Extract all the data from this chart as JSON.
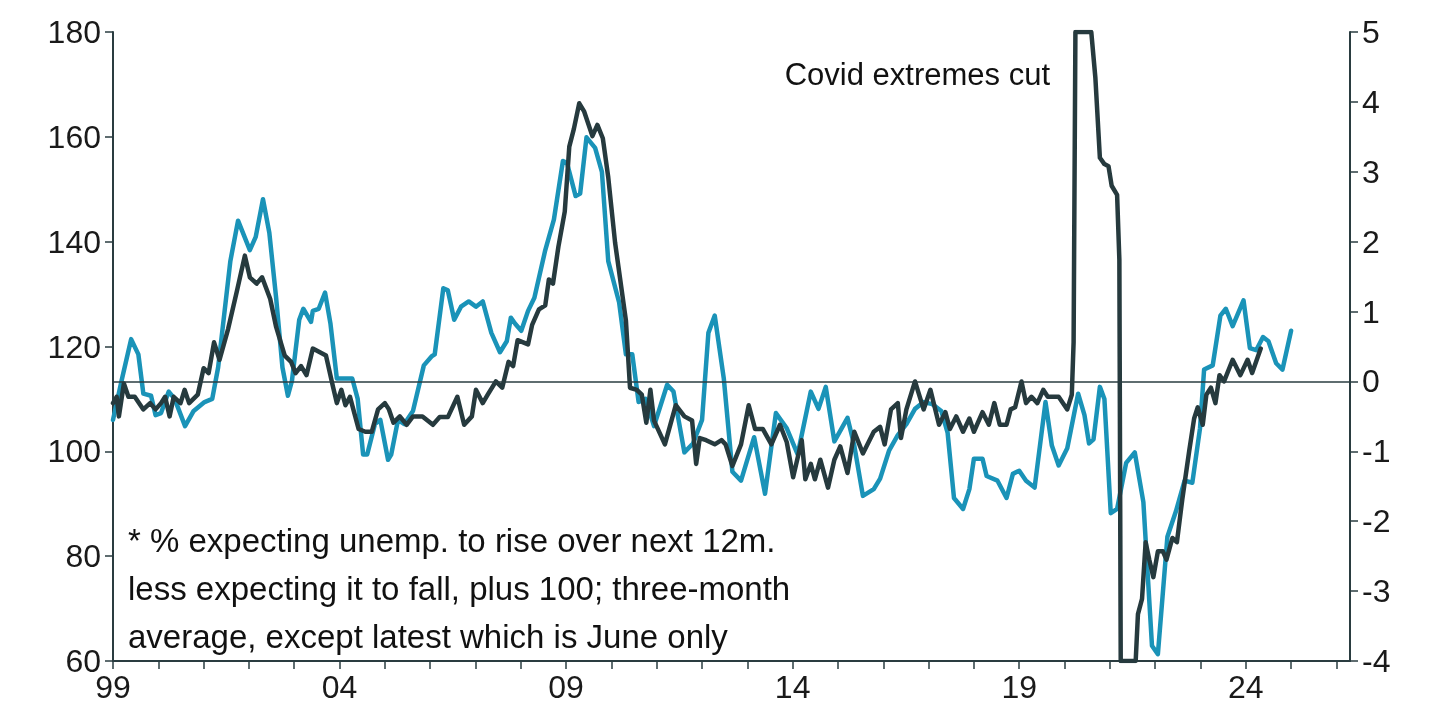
{
  "chart_data": {
    "type": "line",
    "marker": "none",
    "line_style": "solid",
    "xlim": [
      1999,
      2026.3
    ],
    "xticks": [
      {
        "value": 1999,
        "label": "99"
      },
      {
        "value": 2000,
        "label": null
      },
      {
        "value": 2001,
        "label": null
      },
      {
        "value": 2002,
        "label": null
      },
      {
        "value": 2003,
        "label": null
      },
      {
        "value": 2004,
        "label": "04"
      },
      {
        "value": 2005,
        "label": null
      },
      {
        "value": 2006,
        "label": null
      },
      {
        "value": 2007,
        "label": null
      },
      {
        "value": 2008,
        "label": null
      },
      {
        "value": 2009,
        "label": "09"
      },
      {
        "value": 2010,
        "label": null
      },
      {
        "value": 2011,
        "label": null
      },
      {
        "value": 2012,
        "label": null
      },
      {
        "value": 2013,
        "label": null
      },
      {
        "value": 2014,
        "label": "14"
      },
      {
        "value": 2015,
        "label": null
      },
      {
        "value": 2016,
        "label": null
      },
      {
        "value": 2017,
        "label": null
      },
      {
        "value": 2018,
        "label": null
      },
      {
        "value": 2019,
        "label": "19"
      },
      {
        "value": 2020,
        "label": null
      },
      {
        "value": 2021,
        "label": null
      },
      {
        "value": 2022,
        "label": null
      },
      {
        "value": 2023,
        "label": null
      },
      {
        "value": 2024,
        "label": "24"
      },
      {
        "value": 2025,
        "label": null
      },
      {
        "value": 2026,
        "label": null
      }
    ],
    "ylim": [
      60,
      180
    ],
    "yticks": [
      60,
      80,
      100,
      120,
      140,
      160,
      180
    ],
    "y2lim": [
      -4,
      5
    ],
    "y2ticks": [
      -4,
      -3,
      -2,
      -1,
      0,
      1,
      2,
      3,
      4,
      5
    ],
    "ref_lines": [
      {
        "axis": "y2",
        "value": 0,
        "color": "#2a3c40"
      }
    ],
    "annotations": [
      "Covid extremes cut",
      "* % expecting unemp. to rise over next 12m.\nless expecting it to fall, plus 100; three-month\naverage, except latest which is June only"
    ],
    "series": [
      {
        "color": "#1a93b8",
        "x": [
          1999.0,
          1999.19,
          1999.4,
          1999.56,
          1999.67,
          1999.84,
          1999.94,
          2000.06,
          2000.23,
          2000.36,
          2000.59,
          2000.78,
          2001.02,
          2001.19,
          2001.32,
          2001.59,
          2001.76,
          2002.02,
          2002.15,
          2002.31,
          2002.45,
          2002.6,
          2002.74,
          2002.86,
          2002.95,
          2003.11,
          2003.2,
          2003.37,
          2003.41,
          2003.54,
          2003.68,
          2003.8,
          2003.94,
          2004.28,
          2004.4,
          2004.52,
          2004.61,
          2004.78,
          2004.9,
          2005.07,
          2005.14,
          2005.29,
          2005.43,
          2005.62,
          2005.86,
          2006.03,
          2006.1,
          2006.29,
          2006.39,
          2006.53,
          2006.68,
          2006.85,
          2007.01,
          2007.16,
          2007.35,
          2007.54,
          2007.69,
          2007.78,
          2007.88,
          2008.01,
          2008.16,
          2008.3,
          2008.54,
          2008.73,
          2008.93,
          2009.02,
          2009.21,
          2009.31,
          2009.45,
          2009.64,
          2009.79,
          2009.93,
          2010.17,
          2010.32,
          2010.46,
          2010.6,
          2010.75,
          2010.94,
          2011.23,
          2011.37,
          2011.61,
          2011.8,
          2012.0,
          2012.14,
          2012.28,
          2012.48,
          2012.67,
          2012.86,
          2013.15,
          2013.39,
          2013.63,
          2013.87,
          2014.11,
          2014.4,
          2014.57,
          2014.73,
          2014.92,
          2015.21,
          2015.36,
          2015.55,
          2015.79,
          2015.93,
          2016.13,
          2016.32,
          2016.51,
          2016.7,
          2016.89,
          2017.08,
          2017.28,
          2017.42,
          2017.56,
          2017.76,
          2017.9,
          2018.0,
          2018.19,
          2018.28,
          2018.52,
          2018.72,
          2018.86,
          2019.0,
          2019.15,
          2019.34,
          2019.58,
          2019.72,
          2019.87,
          2020.06,
          2020.3,
          2020.44,
          2020.54,
          2020.64,
          2020.78,
          2020.88,
          2021.02,
          2021.16,
          2021.36,
          2021.55,
          2021.74,
          2021.93,
          2022.06,
          2022.27,
          2022.46,
          2022.65,
          2022.82,
          2022.99,
          2023.08,
          2023.27,
          2023.44,
          2023.56,
          2023.71,
          2023.95,
          2024.09,
          2024.23,
          2024.38,
          2024.5,
          2024.67,
          2024.81,
          2025.0
        ],
        "values": [
          106,
          113.5,
          121.4,
          118.5,
          111,
          110.6,
          106.9,
          107.3,
          111.4,
          110,
          104.8,
          107.7,
          109.4,
          110,
          116,
          136.3,
          144,
          138.4,
          140.9,
          148.1,
          141.7,
          129.3,
          116,
          110.6,
          113.5,
          125.1,
          127.2,
          124.7,
          126.8,
          127.2,
          130.3,
          124.3,
          113.9,
          113.9,
          110,
          99.4,
          99.4,
          105.2,
          106,
          98.4,
          99.4,
          106,
          105.2,
          107.7,
          116.4,
          118.1,
          118.5,
          131.1,
          130.7,
          125.1,
          127.6,
          128.6,
          127.6,
          128.6,
          122.6,
          118.9,
          121,
          125.5,
          124.3,
          123,
          126.8,
          129.3,
          138.4,
          144.2,
          155.4,
          155,
          148.7,
          149.2,
          159.9,
          157.9,
          153.3,
          136.3,
          128.4,
          118.5,
          118.5,
          109.4,
          110,
          104.8,
          112.7,
          111.4,
          99.8,
          101.5,
          106,
          122.6,
          125.9,
          113.9,
          96.1,
          94.4,
          102.7,
          91.9,
          107.3,
          104.4,
          99.4,
          111.4,
          108.1,
          112.3,
          101.9,
          106.4,
          101.1,
          91.5,
          92.8,
          94.8,
          100.2,
          103.1,
          105.2,
          108.1,
          109.4,
          109,
          107.7,
          103.5,
          91.1,
          89,
          92.8,
          98.6,
          98.6,
          95.3,
          94.4,
          91.1,
          95.7,
          96.3,
          94.4,
          93.1,
          109.4,
          101.1,
          97.3,
          100.6,
          111,
          106.9,
          101.5,
          102.3,
          112.3,
          110,
          88.2,
          89,
          97.8,
          99.8,
          90.3,
          62.9,
          61.3,
          83.7,
          88.6,
          94.4,
          94,
          104.4,
          115.6,
          116.4,
          125.9,
          127.2,
          123.9,
          128.8,
          119.7,
          119.3,
          121.8,
          121,
          116.8,
          115.6,
          123
        ]
      },
      {
        "color": "#263a3e",
        "axis": "y2",
        "x": [
          1999.0,
          1999.08,
          1999.13,
          1999.24,
          1999.34,
          1999.48,
          1999.67,
          1999.82,
          1999.94,
          2000.06,
          2000.15,
          2000.25,
          2000.34,
          2000.49,
          2000.58,
          2000.68,
          2000.87,
          2001.0,
          2001.11,
          2001.23,
          2001.35,
          2001.54,
          2001.74,
          2001.91,
          2002.02,
          2002.17,
          2002.29,
          2002.47,
          2002.6,
          2002.79,
          2002.93,
          2003.03,
          2003.15,
          2003.27,
          2003.41,
          2003.7,
          2003.85,
          2003.94,
          2004.04,
          2004.13,
          2004.23,
          2004.42,
          2004.57,
          2004.71,
          2004.85,
          2005.0,
          2005.09,
          2005.19,
          2005.33,
          2005.48,
          2005.62,
          2005.83,
          2006.06,
          2006.21,
          2006.39,
          2006.6,
          2006.75,
          2006.92,
          2007.01,
          2007.16,
          2007.27,
          2007.45,
          2007.59,
          2007.73,
          2007.83,
          2007.93,
          2008.16,
          2008.25,
          2008.4,
          2008.54,
          2008.62,
          2008.71,
          2008.83,
          2008.97,
          2009.07,
          2009.17,
          2009.29,
          2009.4,
          2009.58,
          2009.69,
          2009.81,
          2009.93,
          2010.08,
          2010.32,
          2010.41,
          2010.56,
          2010.67,
          2010.77,
          2010.86,
          2010.94,
          2011.18,
          2011.42,
          2011.61,
          2011.78,
          2011.87,
          2011.95,
          2012.09,
          2012.28,
          2012.43,
          2012.52,
          2012.67,
          2012.86,
          2013.03,
          2013.17,
          2013.34,
          2013.53,
          2013.72,
          2013.87,
          2014.01,
          2014.2,
          2014.28,
          2014.4,
          2014.49,
          2014.61,
          2014.78,
          2014.92,
          2015.05,
          2015.21,
          2015.36,
          2015.55,
          2015.79,
          2015.93,
          2016.03,
          2016.17,
          2016.32,
          2016.39,
          2016.51,
          2016.7,
          2016.89,
          2017.04,
          2017.23,
          2017.37,
          2017.47,
          2017.61,
          2017.76,
          2017.9,
          2018.0,
          2018.19,
          2018.33,
          2018.45,
          2018.57,
          2018.72,
          2018.81,
          2018.91,
          2019.05,
          2019.15,
          2019.27,
          2019.4,
          2019.53,
          2019.63,
          2019.87,
          2020.06,
          2020.16,
          2020.2,
          2020.24,
          2020.59,
          2020.68,
          2020.78,
          2020.88,
          2020.97,
          2021.04,
          2021.16,
          2021.21,
          2021.24,
          2021.57,
          2021.62,
          2021.71,
          2021.79,
          2021.87,
          2021.96,
          2022.06,
          2022.17,
          2022.25,
          2022.38,
          2022.48,
          2022.6,
          2022.75,
          2022.86,
          2022.94,
          2023.05,
          2023.13,
          2023.23,
          2023.33,
          2023.42,
          2023.52,
          2023.71,
          2023.88,
          2024.04,
          2024.14,
          2024.33
        ],
        "values": [
          -0.31,
          -0.22,
          -0.5,
          -0.03,
          -0.22,
          -0.22,
          -0.4,
          -0.31,
          -0.4,
          -0.31,
          -0.22,
          -0.5,
          -0.22,
          -0.31,
          -0.12,
          -0.31,
          -0.19,
          0.19,
          0.12,
          0.56,
          0.31,
          0.75,
          1.31,
          1.8,
          1.49,
          1.4,
          1.49,
          1.18,
          0.78,
          0.37,
          0.28,
          0.12,
          0.22,
          0.09,
          0.47,
          0.37,
          -0.06,
          -0.31,
          -0.12,
          -0.34,
          -0.22,
          -0.68,
          -0.72,
          -0.72,
          -0.4,
          -0.31,
          -0.4,
          -0.59,
          -0.5,
          -0.62,
          -0.5,
          -0.5,
          -0.62,
          -0.51,
          -0.51,
          -0.22,
          -0.62,
          -0.5,
          -0.12,
          -0.31,
          -0.19,
          0,
          -0.09,
          0.28,
          0.22,
          0.59,
          0.53,
          0.81,
          1.03,
          1.09,
          1.46,
          1.4,
          1.93,
          2.43,
          3.36,
          3.61,
          3.98,
          3.86,
          3.51,
          3.67,
          3.48,
          2.92,
          1.99,
          0.87,
          -0.09,
          -0.12,
          -0.19,
          -0.59,
          -0.12,
          -0.56,
          -0.9,
          -0.34,
          -0.5,
          -0.56,
          -1.18,
          -0.81,
          -0.84,
          -0.9,
          -0.84,
          -0.9,
          -1.21,
          -0.9,
          -0.34,
          -0.68,
          -0.68,
          -0.9,
          -0.62,
          -0.87,
          -1.37,
          -0.84,
          -1.4,
          -1.18,
          -1.4,
          -1.12,
          -1.52,
          -1.12,
          -0.93,
          -1.31,
          -0.72,
          -1.03,
          -0.72,
          -0.65,
          -0.9,
          -0.4,
          -0.31,
          -0.81,
          -0.4,
          0,
          -0.4,
          -0.12,
          -0.62,
          -0.44,
          -0.68,
          -0.5,
          -0.72,
          -0.53,
          -0.72,
          -0.44,
          -0.62,
          -0.31,
          -0.62,
          -0.62,
          -0.4,
          -0.37,
          0,
          -0.31,
          -0.22,
          -0.31,
          -0.12,
          -0.22,
          -0.22,
          -0.4,
          -0.19,
          0.56,
          5,
          5,
          4.35,
          3.2,
          3.11,
          3.08,
          2.8,
          2.67,
          1.74,
          -4,
          -4,
          -3.33,
          -3.11,
          -2.3,
          -2.55,
          -2.8,
          -2.43,
          -2.43,
          -2.55,
          -2.24,
          -2.3,
          -1.68,
          -1,
          -0.53,
          -0.37,
          -0.62,
          -0.19,
          -0.09,
          -0.31,
          0.09,
          0,
          0.31,
          0.09,
          0.31,
          0.12,
          0.47
        ]
      }
    ]
  }
}
